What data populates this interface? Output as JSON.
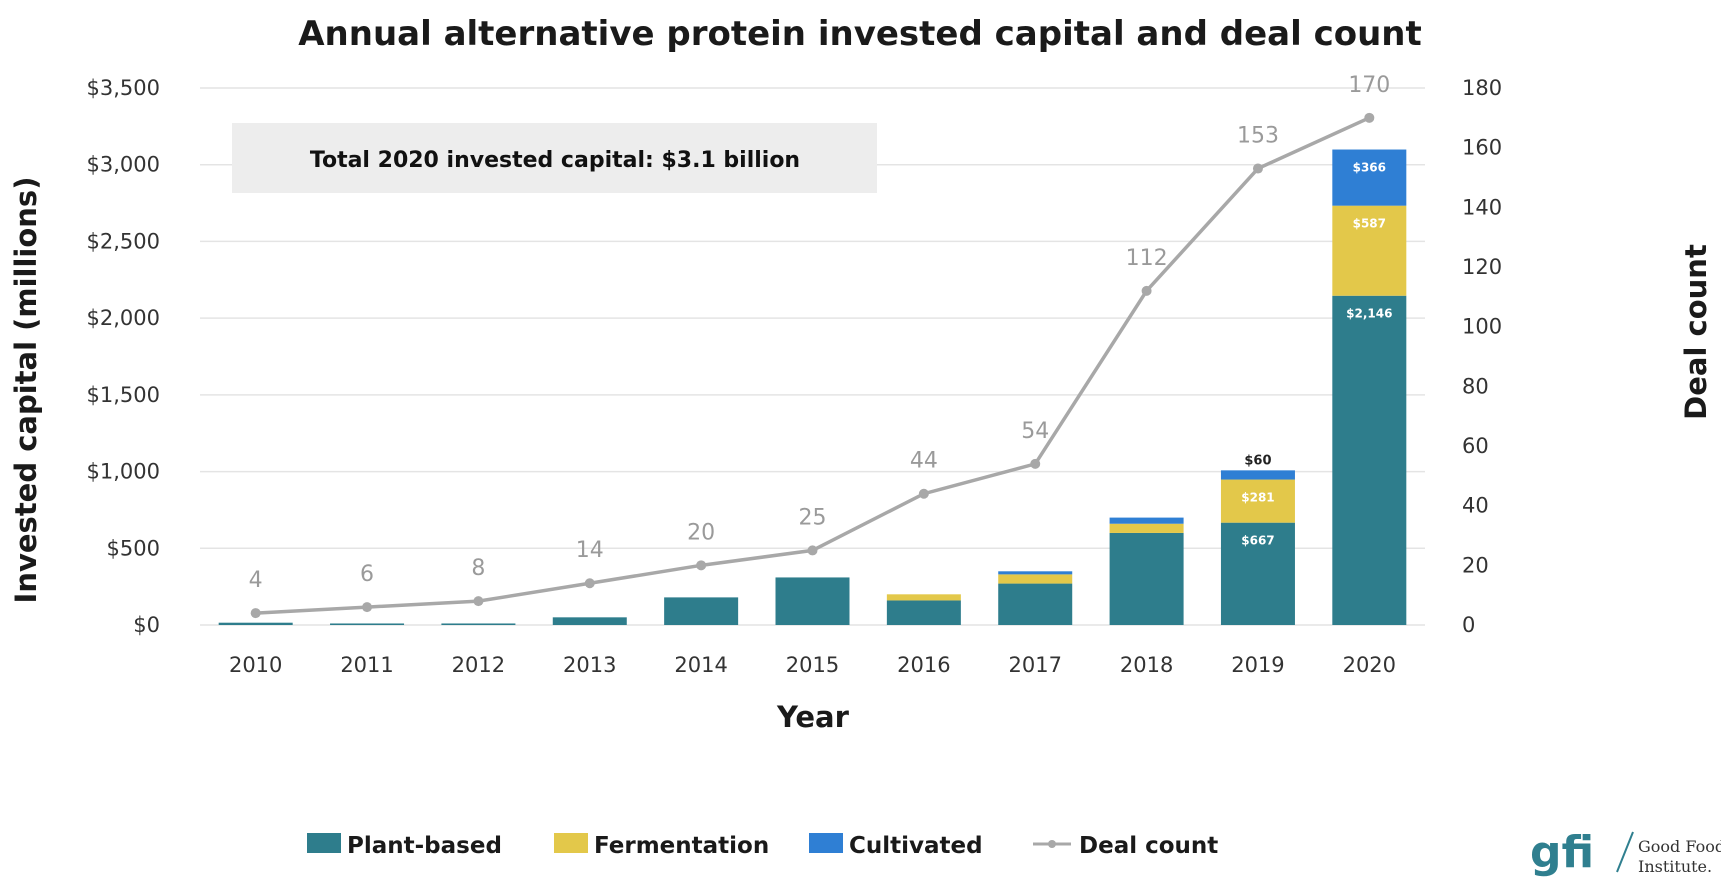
{
  "chart_data": {
    "type": "bar",
    "title": "Annual alternative protein invested capital and deal count",
    "xlabel": "Year",
    "ylabel": "Invested capital (millions)",
    "y2label": "Deal count",
    "categories": [
      "2010",
      "2011",
      "2012",
      "2013",
      "2014",
      "2015",
      "2016",
      "2017",
      "2018",
      "2019",
      "2020"
    ],
    "ylim": [
      0,
      3500
    ],
    "y_ticks": [
      0,
      500,
      1000,
      1500,
      2000,
      2500,
      3000,
      3500
    ],
    "y_tick_labels": [
      "$0",
      "$500",
      "$1,000",
      "$1,500",
      "$2,000",
      "$2,500",
      "$3,000",
      "$3,500"
    ],
    "y2lim": [
      0,
      180
    ],
    "y2_ticks": [
      0,
      20,
      40,
      60,
      80,
      100,
      120,
      140,
      160,
      180
    ],
    "y2_tick_labels": [
      "0",
      "20",
      "40",
      "60",
      "80",
      "100",
      "120",
      "140",
      "160",
      "180"
    ],
    "stacked": true,
    "grid": true,
    "legend_position": "bottom",
    "series": [
      {
        "name": "Plant-based",
        "type": "bar",
        "color": "#2e7d8c",
        "values": [
          15,
          10,
          10,
          50,
          180,
          310,
          160,
          270,
          600,
          667,
          2146
        ],
        "value_labels": [
          "",
          "",
          "",
          "",
          "",
          "",
          "",
          "",
          "",
          "$667",
          "$2,146"
        ]
      },
      {
        "name": "Fermentation",
        "type": "bar",
        "color": "#e3c84a",
        "values": [
          0,
          0,
          0,
          0,
          0,
          0,
          40,
          60,
          60,
          281,
          587
        ],
        "value_labels": [
          "",
          "",
          "",
          "",
          "",
          "",
          "",
          "",
          "",
          "$281",
          "$587"
        ]
      },
      {
        "name": "Cultivated",
        "type": "bar",
        "color": "#2f7fd4",
        "values": [
          0,
          0,
          0,
          0,
          0,
          0,
          0,
          20,
          40,
          60,
          366
        ],
        "value_labels": [
          "",
          "",
          "",
          "",
          "",
          "",
          "",
          "",
          "",
          "$60",
          "$366"
        ]
      },
      {
        "name": "Deal count",
        "type": "line",
        "color": "#a8a8a8",
        "axis": "right",
        "values": [
          4,
          6,
          8,
          14,
          20,
          25,
          44,
          54,
          112,
          153,
          170
        ]
      }
    ],
    "annotation": "Total 2020 invested capital: $3.1 billion"
  },
  "logo": {
    "mark": "gfi",
    "org_line1": "Good Food",
    "org_line2": "Institute."
  },
  "colors": {
    "plant": "#2e7d8c",
    "fermentation": "#e3c84a",
    "cultivated": "#2f7fd4",
    "deal_line": "#a8a8a8",
    "grid": "#e4e4e4",
    "annotation_bg": "#ededed"
  }
}
